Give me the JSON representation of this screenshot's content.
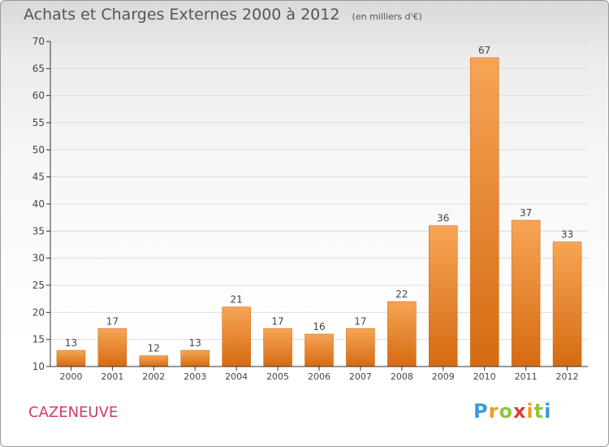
{
  "title": "Achats et Charges Externes 2000 à 2012",
  "subtitle": "(en milliers d'€)",
  "commune": "CAZENEUVE",
  "brand": {
    "letters": [
      "P",
      "r",
      "o",
      "x",
      "i",
      "t",
      "i"
    ],
    "colors": [
      "#3a9bd8",
      "#f39a1e",
      "#8cc63e",
      "#e23b2e",
      "#f39a1e",
      "#8cc63e",
      "#3a9bd8"
    ]
  },
  "colors": {
    "bar_top": "#f7a555",
    "bar_bottom": "#d56b12",
    "axis": "#333333",
    "grid": "#dddddd",
    "text": "#444444"
  },
  "chart_data": {
    "type": "bar",
    "categories": [
      "2000",
      "2001",
      "2002",
      "2003",
      "2004",
      "2005",
      "2006",
      "2007",
      "2008",
      "2009",
      "2010",
      "2011",
      "2012"
    ],
    "values": [
      13,
      17,
      12,
      13,
      21,
      17,
      16,
      17,
      22,
      36,
      67,
      37,
      33
    ],
    "data_labels": [
      "13",
      "17",
      "12",
      "13",
      "21",
      "17",
      "16",
      "17",
      "22",
      "36",
      "67",
      "37",
      "33"
    ],
    "ylim": [
      10,
      70
    ],
    "yticks": [
      10,
      15,
      20,
      25,
      30,
      35,
      40,
      45,
      50,
      55,
      60,
      65,
      70
    ],
    "grid": true,
    "legend": "none"
  }
}
